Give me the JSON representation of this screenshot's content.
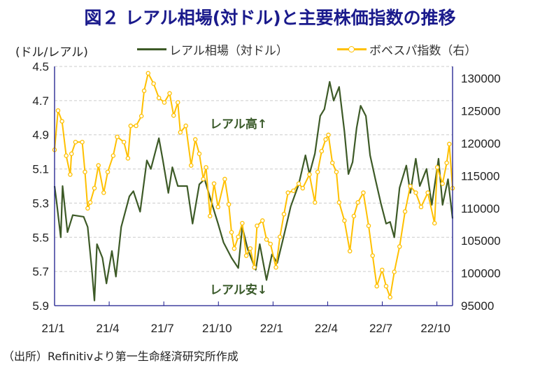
{
  "title": "図２ レアル相場(対ドル)と主要株価指数の推移",
  "source": "（出所）Refinitivより第一生命経済研究所作成",
  "chart_data": {
    "type": "line",
    "title": "図２ レアル相場(対ドル)と主要株価指数の推移",
    "ylabel": "(ドル/レアル)",
    "x_unit": "months since 2021/1",
    "xlim": [
      0,
      21.86
    ],
    "x_ticks": [
      0,
      3,
      6,
      9,
      12,
      15,
      18,
      21
    ],
    "x_tick_labels": [
      "21/1",
      "21/4",
      "21/7",
      "21/10",
      "22/1",
      "22/4",
      "22/7",
      "22/10"
    ],
    "ylim_left": [
      4.5,
      5.9
    ],
    "left_inverted": true,
    "y_ticks_left": [
      "4.5",
      "4.7",
      "4.9",
      "5.1",
      "5.3",
      "5.5",
      "5.7",
      "5.9"
    ],
    "ylim_right": [
      95000,
      131850
    ],
    "y_ticks_right": [
      "95000",
      "100000",
      "105000",
      "110000",
      "115000",
      "120000",
      "125000",
      "130000"
    ],
    "grid": "horizontal dashed",
    "legend_position": "top",
    "annotations": [
      "レアル高↑",
      "レアル安↓"
    ],
    "colors": {
      "brl": "#3d5a27",
      "bovespa": "#ffc000",
      "axis": "#1a1a8c"
    },
    "series": [
      {
        "name": "レアル相場（対ドル）",
        "axis": "left",
        "x": [
          0,
          0.12,
          0.34,
          0.44,
          0.71,
          1.0,
          1.6,
          1.82,
          2.04,
          2.19,
          2.33,
          2.63,
          2.85,
          3.15,
          3.37,
          3.66,
          4.11,
          4.33,
          4.7,
          5.07,
          5.29,
          5.73,
          5.95,
          6.25,
          6.47,
          6.77,
          7.28,
          7.58,
          7.95,
          8.24,
          8.69,
          8.98,
          9.28,
          9.72,
          10.09,
          10.31,
          10.61,
          11.05,
          11.27,
          11.64,
          11.94,
          12.23,
          12.53,
          12.97,
          13.41,
          13.78,
          14.0,
          14.3,
          14.59,
          14.82,
          15.11,
          15.33,
          15.63,
          15.92,
          16.14,
          16.37,
          16.59,
          16.81,
          17.1,
          17.33,
          17.62,
          17.92,
          18.21,
          18.43,
          18.66,
          18.95,
          19.32,
          19.54,
          19.84,
          20.06,
          20.43,
          20.72,
          21.09,
          21.31,
          21.61,
          21.86
        ],
        "y": [
          5.2,
          5.3,
          5.5,
          5.2,
          5.47,
          5.37,
          5.38,
          5.44,
          5.68,
          5.87,
          5.54,
          5.62,
          5.77,
          5.58,
          5.73,
          5.44,
          5.26,
          5.23,
          5.35,
          5.05,
          5.1,
          4.92,
          5.05,
          5.24,
          5.09,
          5.2,
          5.2,
          5.42,
          5.19,
          5.16,
          5.32,
          5.42,
          5.53,
          5.62,
          5.68,
          5.44,
          5.57,
          5.69,
          5.54,
          5.75,
          5.6,
          5.65,
          5.52,
          5.32,
          5.19,
          5.02,
          5.13,
          5.01,
          4.79,
          4.75,
          4.59,
          4.7,
          4.62,
          4.88,
          5.13,
          5.06,
          4.86,
          4.73,
          4.79,
          5.02,
          5.16,
          5.3,
          5.42,
          5.41,
          5.5,
          5.21,
          5.08,
          5.24,
          5.04,
          5.2,
          5.1,
          5.31,
          5.04,
          5.31,
          5.16,
          5.39
        ]
      },
      {
        "name": "ボベスパ指数（右）",
        "axis": "right",
        "x": [
          0,
          0.19,
          0.41,
          0.64,
          0.86,
          0.93,
          1.15,
          1.52,
          1.67,
          1.82,
          1.96,
          2.19,
          2.41,
          2.7,
          2.92,
          3.22,
          3.44,
          3.81,
          4.03,
          4.18,
          4.48,
          4.77,
          4.92,
          5.14,
          5.44,
          5.73,
          6.03,
          6.32,
          6.54,
          6.77,
          6.91,
          7.21,
          7.5,
          7.73,
          7.95,
          8.17,
          8.32,
          8.54,
          8.76,
          8.98,
          9.35,
          9.57,
          9.72,
          9.87,
          10.09,
          10.31,
          10.53,
          10.75,
          10.97,
          11.12,
          11.42,
          11.64,
          11.86,
          12.16,
          12.38,
          12.6,
          12.82,
          13.12,
          13.41,
          13.63,
          14.0,
          14.3,
          14.45,
          14.67,
          14.89,
          15.04,
          15.26,
          15.48,
          15.63,
          15.92,
          16.22,
          16.44,
          16.66,
          16.96,
          17.25,
          17.47,
          17.7,
          17.99,
          18.21,
          18.43,
          18.66,
          18.95,
          19.25,
          19.54,
          19.84,
          20.13,
          20.5,
          20.87,
          21.02,
          21.31,
          21.54,
          21.68,
          21.86
        ],
        "y": [
          119000,
          125050,
          123400,
          118100,
          115200,
          118400,
          120200,
          120200,
          115600,
          110000,
          110900,
          113100,
          116600,
          112400,
          115600,
          118100,
          121000,
          120200,
          117700,
          122700,
          122700,
          124200,
          128100,
          130800,
          129200,
          127000,
          126300,
          127700,
          124300,
          126300,
          121700,
          122700,
          116600,
          120600,
          118400,
          114500,
          116300,
          108800,
          113800,
          110200,
          114500,
          110600,
          106300,
          103800,
          105600,
          107700,
          102700,
          103800,
          100900,
          107300,
          108100,
          105200,
          104500,
          100900,
          105600,
          109100,
          112400,
          112700,
          113800,
          113100,
          115200,
          110900,
          115600,
          118800,
          120600,
          121300,
          117000,
          115600,
          110900,
          108100,
          103400,
          108800,
          110900,
          112400,
          107300,
          102700,
          98000,
          100500,
          98000,
          96300,
          100200,
          104100,
          109500,
          113400,
          112400,
          110200,
          112400,
          107700,
          116300,
          113800,
          117000,
          119900,
          113100
        ]
      }
    ]
  }
}
